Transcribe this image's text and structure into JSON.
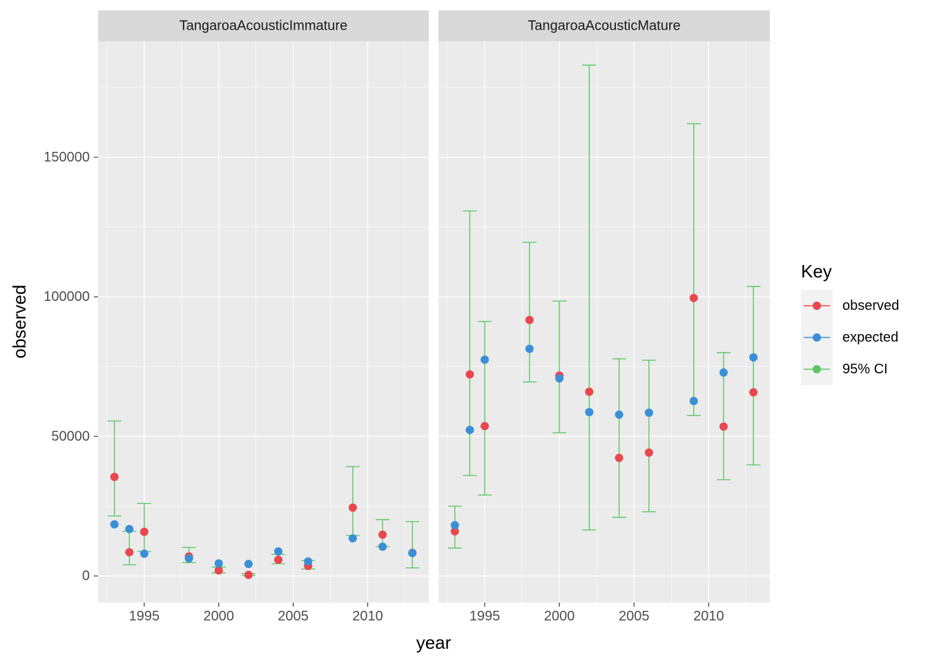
{
  "chart_data": {
    "type": "scatter",
    "xlabel": "year",
    "ylabel": "observed",
    "ylim": [
      -9500,
      191500
    ],
    "xlim": [
      1991.9,
      2014.1
    ],
    "x_ticks": [
      1995,
      2000,
      2005,
      2010
    ],
    "y_ticks": [
      0,
      50000,
      100000,
      150000
    ],
    "y_tick_labels": [
      "0",
      "50000",
      "100000",
      "150000"
    ],
    "grid": true,
    "legend": {
      "title": "Key",
      "position": "right",
      "entries": [
        {
          "label": "observed",
          "color": "#E8474E"
        },
        {
          "label": "expected",
          "color": "#3A8FD6"
        },
        {
          "label": "95% CI",
          "color": "#5CC766"
        }
      ]
    },
    "colors": {
      "observed": "#E8474E",
      "expected": "#3A8FD6",
      "ci": "#5CC766"
    },
    "panels": [
      {
        "title": "TangaroaAcousticImmature",
        "points": [
          {
            "year": 1993,
            "observed": 35500,
            "expected": 18500,
            "lower": 21500,
            "upper": 55500
          },
          {
            "year": 1994,
            "observed": 8500,
            "expected": 16800,
            "lower": 4000,
            "upper": 16000
          },
          {
            "year": 1995,
            "observed": 15800,
            "expected": 8000,
            "lower": 8800,
            "upper": 26000
          },
          {
            "year": 1998,
            "observed": 7000,
            "expected": 6300,
            "lower": 4800,
            "upper": 10200
          },
          {
            "year": 2000,
            "observed": 2000,
            "expected": 4500,
            "lower": 1100,
            "upper": 3200
          },
          {
            "year": 2002,
            "observed": 400,
            "expected": 4300,
            "lower": 200,
            "upper": 800
          },
          {
            "year": 2004,
            "observed": 5800,
            "expected": 8800,
            "lower": 4400,
            "upper": 7700
          },
          {
            "year": 2006,
            "observed": 3600,
            "expected": 5200,
            "lower": 2500,
            "upper": 5500
          },
          {
            "year": 2009,
            "observed": 24500,
            "expected": 13500,
            "lower": 14500,
            "upper": 39200
          },
          {
            "year": 2011,
            "observed": 14800,
            "expected": 10500,
            "lower": 10500,
            "upper": 20200
          },
          {
            "year": 2013,
            "observed": 8300,
            "expected": 8200,
            "lower": 2900,
            "upper": 19500
          }
        ]
      },
      {
        "title": "TangaroaAcousticMature",
        "points": [
          {
            "year": 1993,
            "observed": 16000,
            "expected": 18200,
            "lower": 10000,
            "upper": 25000
          },
          {
            "year": 1994,
            "observed": 72200,
            "expected": 52300,
            "lower": 36000,
            "upper": 130800
          },
          {
            "year": 1995,
            "observed": 53700,
            "expected": 77500,
            "lower": 29000,
            "upper": 91200
          },
          {
            "year": 1998,
            "observed": 91700,
            "expected": 81400,
            "lower": 69500,
            "upper": 119500
          },
          {
            "year": 2000,
            "observed": 71800,
            "expected": 70800,
            "lower": 51300,
            "upper": 98500
          },
          {
            "year": 2002,
            "observed": 66000,
            "expected": 58700,
            "lower": 16500,
            "upper": 183000
          },
          {
            "year": 2004,
            "observed": 42300,
            "expected": 57800,
            "lower": 21000,
            "upper": 77800
          },
          {
            "year": 2006,
            "observed": 44200,
            "expected": 58500,
            "lower": 23000,
            "upper": 77300
          },
          {
            "year": 2009,
            "observed": 99600,
            "expected": 62700,
            "lower": 57500,
            "upper": 162000
          },
          {
            "year": 2011,
            "observed": 53500,
            "expected": 72900,
            "lower": 34500,
            "upper": 80000
          },
          {
            "year": 2013,
            "observed": 65800,
            "expected": 78300,
            "lower": 39800,
            "upper": 103700
          }
        ]
      }
    ]
  }
}
